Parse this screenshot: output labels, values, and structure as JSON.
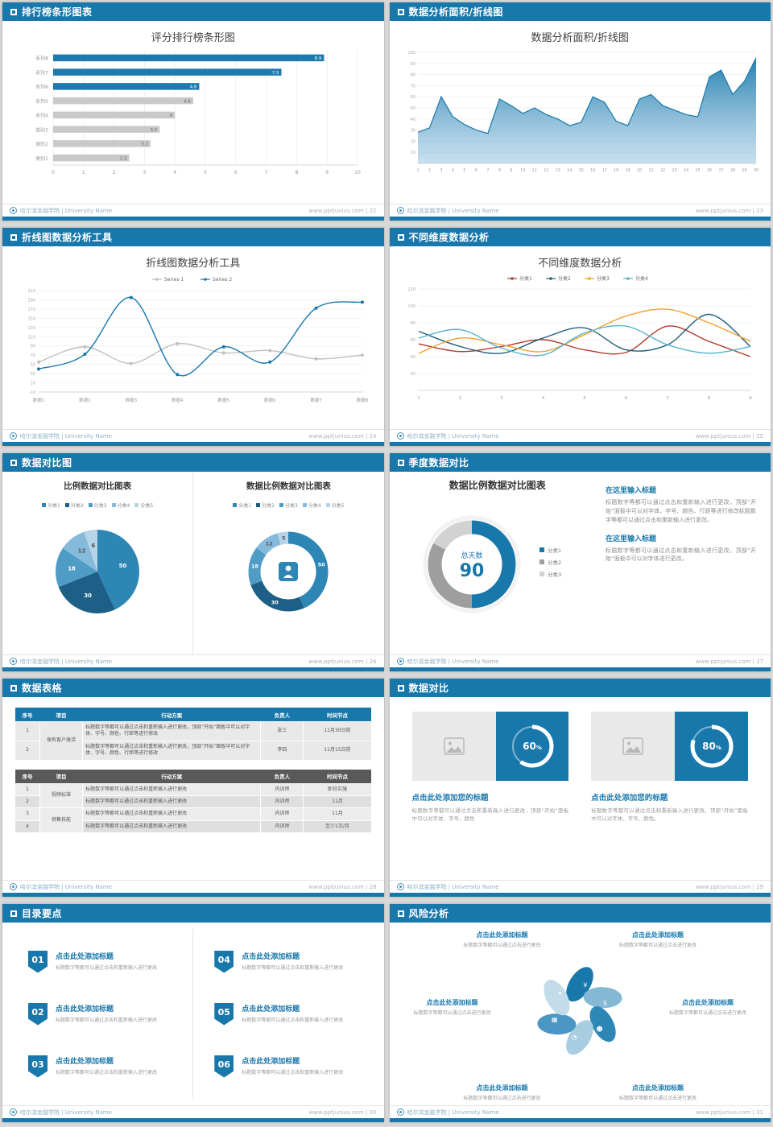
{
  "page": {
    "footer_school": "哈尔滨金融学院 | University Name",
    "footer_site": "www.pptjunius.com"
  },
  "slides": {
    "s1": {
      "header": "排行榜条形图表",
      "title": "评分排行榜条形图",
      "footer_right": "www.pptjunius.com | 22"
    },
    "s2": {
      "header": "数据分析面积/折线图",
      "title": "数据分析面积/折线图",
      "footer_right": "www.pptjunius.com | 23"
    },
    "s3": {
      "header": "折线图数据分析工具",
      "title": "折线图数据分析工具",
      "footer_right": "www.pptjunius.com | 24"
    },
    "s4": {
      "header": "不同维度数据分析",
      "title": "不同维度数据分析",
      "footer_right": "www.pptjunius.com | 25"
    },
    "s5": {
      "header": "数据对比图",
      "title_left": "比例数据对比图表",
      "title_right": "数据比例数据对比图表",
      "footer_right": "www.pptjunius.com | 26"
    },
    "s6": {
      "header": "季度数据对比",
      "title": "数据比例数据对比图表",
      "footer_right": "www.pptjunius.com | 27",
      "blocks": [
        {
          "heading": "在这里输入标题",
          "body": "标题数字等都可以通过点击和重新输入进行更改，顶部“开始”面板中可以对字体、字号、颜色、行距等进行修改标题数字等都可以通过点击和重新输入进行更改。"
        },
        {
          "heading": "在这里输入标题",
          "body": "标题数字等都可以通过点击和重新输入进行更改，顶部“开始”面板中可以对字体进行更改。"
        }
      ]
    },
    "s7": {
      "header": "数据表格",
      "footer_right": "www.pptjunius.com | 28",
      "table1": {
        "headers": [
          "序号",
          "项目",
          "行动方案",
          "负责人",
          "时间节点"
        ],
        "project": "保有客户激活",
        "rows": [
          {
            "no": "1",
            "plan": "标题数字等都可以通过点击和重新输入进行更改，顶部“开始”面板中可以对字体、字号、颜色、行距等进行修改",
            "owner": "张三",
            "time": "11月30日前"
          },
          {
            "no": "2",
            "plan": "标题数字等都可以通过点击和重新输入进行更改，顶部“开始”面板中可以对字体、字号、颜色、行距等进行修改",
            "owner": "李四",
            "time": "11月15日前"
          }
        ]
      },
      "table2": {
        "headers": [
          "序号",
          "项目",
          "行动方案",
          "负责人",
          "时间节点"
        ],
        "projects": [
          "视频标准",
          "销售技能"
        ],
        "rows": [
          {
            "no": "1",
            "plan": "标题数字等都可以通过点击和重新输入进行更改",
            "owner": "内训师",
            "time": "即日实施"
          },
          {
            "no": "2",
            "plan": "标题数字等都可以通过点击和重新输入进行更改",
            "owner": "内训师",
            "time": "11月"
          },
          {
            "no": "3",
            "plan": "标题数字等都可以通过点击和重新输入进行更改",
            "owner": "内训师",
            "time": "11月"
          },
          {
            "no": "4",
            "plan": "标题数字等都可以通过点击和重新输入进行更改",
            "owner": "内训师",
            "time": "至少1次/月"
          }
        ]
      }
    },
    "s8": {
      "header": "数据对比",
      "footer_right": "www.pptjunius.com | 29",
      "cards": [
        {
          "title": "点击此处添加您的标题",
          "body": "标题数字等都可以通过点击和重新输入进行更改，顶部“开始”面板中可以对字体、字号、颜色"
        },
        {
          "title": "点击此处添加您的标题",
          "body": "标题数字等都可以通过点击和重新输入进行更改，顶部“开始”面板中可以对字体、字号、颜色。"
        }
      ]
    },
    "s9": {
      "header": "目录要点",
      "footer_right": "www.pptjunius.com | 30",
      "items": [
        {
          "num": "01",
          "title": "点击此处添加标题",
          "sub": "标题数字等都可以通过点击和重新输入进行更改"
        },
        {
          "num": "02",
          "title": "点击此处添加标题",
          "sub": "标题数字等都可以通过点击和重新输入进行更改"
        },
        {
          "num": "03",
          "title": "点击此处添加标题",
          "sub": "标题数字等都可以通过点击和重新输入进行更改"
        },
        {
          "num": "04",
          "title": "点击此处添加标题",
          "sub": "标题数字等都可以通过点击和重新输入进行更改"
        },
        {
          "num": "05",
          "title": "点击此处添加标题",
          "sub": "标题数字等都可以通过点击和重新输入进行更改"
        },
        {
          "num": "06",
          "title": "点击此处添加标题",
          "sub": "标题数字等都可以通过点击和重新输入进行更改"
        }
      ]
    },
    "s10": {
      "header": "风险分析",
      "footer_right": "www.pptjunius.com | 31",
      "icons": [
        "money-bag",
        "coins",
        "people",
        "pie-chart",
        "calculator",
        "bulb"
      ],
      "labels": [
        {
          "title": "点击此处添加标题",
          "sub": "标题数字等都可以通过点击进行更改"
        },
        {
          "title": "点击此处添加标题",
          "sub": "标题数字等都可以通过点击进行更改"
        },
        {
          "title": "点击此处添加标题",
          "sub": "标题数字等都可以通过点击进行更改"
        },
        {
          "title": "点击此处添加标题",
          "sub": "标题数字等都可以通过点击进行更改"
        },
        {
          "title": "点击此处添加标题",
          "sub": "标题数字等都可以通过点击进行更改"
        },
        {
          "title": "点击此处添加标题",
          "sub": "标题数字等都可以通过点击进行更改"
        }
      ]
    }
  },
  "chart_data": [
    {
      "id": "ranking_bars",
      "type": "bar",
      "orientation": "horizontal",
      "title": "评分排行榜条形图",
      "categories": [
        "系列8",
        "系列7",
        "系列6",
        "系列5",
        "系列4",
        "类别3",
        "类别2",
        "类别1"
      ],
      "values": [
        8.9,
        7.5,
        4.8,
        4.6,
        4,
        3.5,
        3.2,
        2.5
      ],
      "bar_colors": [
        "#1c7ab0",
        "#1c7ab0",
        "#1c7ab0",
        "#c9c9c9",
        "#c9c9c9",
        "#c9c9c9",
        "#c9c9c9",
        "#c9c9c9"
      ],
      "xlim": [
        0,
        10
      ],
      "xticks": [
        0,
        1,
        2,
        3,
        4,
        5,
        6,
        7,
        8,
        9,
        10
      ],
      "grid": true
    },
    {
      "id": "area_trend",
      "type": "area",
      "title": "数据分析面积/折线图",
      "color": "#1878ac",
      "x": [
        1,
        2,
        3,
        4,
        5,
        6,
        7,
        8,
        9,
        10,
        11,
        12,
        13,
        14,
        15,
        16,
        17,
        18,
        19,
        20,
        21,
        22,
        23,
        24,
        25,
        26,
        27,
        28,
        29,
        30
      ],
      "values": [
        28,
        32,
        60,
        42,
        35,
        30,
        27,
        58,
        52,
        45,
        50,
        44,
        40,
        34,
        37,
        60,
        55,
        38,
        34,
        58,
        62,
        52,
        48,
        44,
        42,
        78,
        84,
        62,
        74,
        95
      ],
      "ylim": [
        0,
        100
      ],
      "yticks": [
        10,
        20,
        30,
        40,
        50,
        60,
        70,
        80,
        90,
        100
      ],
      "grid": true
    },
    {
      "id": "line_tool",
      "type": "line",
      "title": "折线图数据分析工具",
      "categories": [
        "数据1",
        "数据2",
        "数据3",
        "数据4",
        "数据5",
        "数据6",
        "数据7",
        "数据8"
      ],
      "series": [
        {
          "name": "Series 1",
          "color": "#bfbfbf",
          "values": [
            55,
            88,
            52,
            95,
            75,
            80,
            62,
            70
          ]
        },
        {
          "name": "Series 2",
          "color": "#1878ac",
          "values": [
            40,
            72,
            195,
            28,
            88,
            55,
            172,
            185
          ]
        }
      ],
      "ylim": [
        -10,
        210
      ],
      "yticks": [
        -10,
        10,
        30,
        50,
        70,
        90,
        110,
        130,
        150,
        170,
        190,
        210
      ],
      "legend_position": "top",
      "grid": true
    },
    {
      "id": "dimension_lines",
      "type": "line",
      "title": "不同维度数据分析",
      "x": [
        1,
        2,
        3,
        4,
        5,
        6,
        7,
        8,
        9
      ],
      "series": [
        {
          "name": "分类1",
          "color": "#b23b2e",
          "values": [
            55,
            46,
            52,
            60,
            48,
            45,
            76,
            58,
            40
          ]
        },
        {
          "name": "分类2",
          "color": "#20607a",
          "values": [
            70,
            52,
            44,
            62,
            74,
            48,
            54,
            90,
            52
          ]
        },
        {
          "name": "分类3",
          "color": "#f0a030",
          "values": [
            44,
            62,
            54,
            46,
            66,
            88,
            96,
            80,
            58
          ]
        },
        {
          "name": "分类4",
          "color": "#56b4d3",
          "values": [
            62,
            72,
            50,
            42,
            68,
            76,
            54,
            44,
            52
          ]
        }
      ],
      "ylim": [
        0,
        120
      ],
      "yticks": [
        20,
        40,
        60,
        80,
        100,
        120
      ],
      "legend_position": "top",
      "grid": true
    },
    {
      "id": "ratio_pie",
      "type": "pie",
      "title": "比例数据对比图表",
      "labels": [
        "分类1",
        "分类2",
        "分类3",
        "分类4",
        "分类5"
      ],
      "values": [
        50,
        30,
        18,
        12,
        6
      ],
      "colors": [
        "#2e86b5",
        "#1d5f86",
        "#4f9cc6",
        "#86badb",
        "#b5d4e9"
      ]
    },
    {
      "id": "ratio_donut",
      "type": "pie",
      "subtype": "donut",
      "title": "数据比例数据对比图表",
      "labels": [
        "分类1",
        "分类2",
        "分类3",
        "分类4",
        "分类5"
      ],
      "values": [
        50,
        30,
        18,
        12,
        5
      ],
      "colors": [
        "#2e86b5",
        "#1d5f86",
        "#4f9cc6",
        "#86badb",
        "#b5d4e9"
      ],
      "center_icon": "person-icon"
    },
    {
      "id": "days_donut",
      "type": "pie",
      "subtype": "donut",
      "title": "数据比例数据对比图表",
      "labels": [
        "分类1",
        "分类2",
        "分类3"
      ],
      "values": [
        50,
        33,
        17
      ],
      "colors": [
        "#1878ac",
        "#9e9e9e",
        "#d2d2d2"
      ],
      "center_label": "总天数",
      "center_value": "90",
      "legend_position": "right"
    },
    {
      "id": "progress_rings",
      "type": "progress",
      "values": [
        60,
        80
      ],
      "ring_color": "#ffffff",
      "background": "#1878ac"
    }
  ]
}
